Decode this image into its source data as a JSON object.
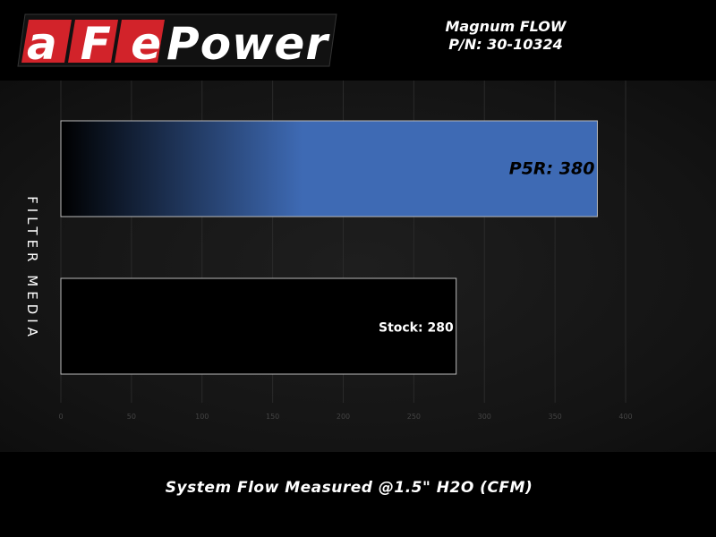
{
  "logo": {
    "text_red": "aFe",
    "text_white": "Power"
  },
  "header": {
    "line1": "Magnum FLOW",
    "line2": "P/N: 30-10324"
  },
  "colors": {
    "p5r_bar": "#3e6ab4",
    "stock_bar": "#000000",
    "logo_red": "#d2232a"
  },
  "chart_data": {
    "type": "bar",
    "orientation": "horizontal",
    "categories": [
      "P5R",
      "Stock"
    ],
    "values": [
      380,
      280
    ],
    "data_labels": [
      "P5R: 380",
      "Stock: 280"
    ],
    "xlabel": "System Flow Measured @1.5\" H2O (CFM)",
    "ylabel": "FILTER MEDIA",
    "xlim": [
      0,
      400
    ],
    "xticks": [
      0,
      50,
      100,
      150,
      200,
      250,
      300,
      350,
      400
    ],
    "grid": "vertical"
  }
}
